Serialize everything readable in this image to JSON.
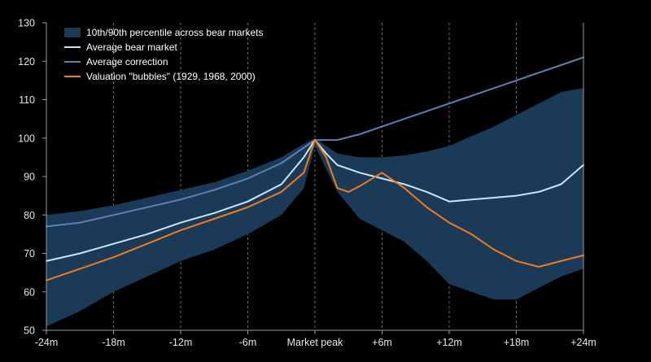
{
  "chart_data": {
    "type": "area",
    "title": "",
    "xlabel": "",
    "ylabel": "",
    "xlim": [
      -24,
      24
    ],
    "ylim": [
      50,
      130
    ],
    "grid": "vertical dashed",
    "legend_position": "top-left",
    "x_ticks": [
      {
        "value": -24,
        "label": "-24m"
      },
      {
        "value": -18,
        "label": "-18m"
      },
      {
        "value": -12,
        "label": "-12m"
      },
      {
        "value": -6,
        "label": "-6m"
      },
      {
        "value": 0,
        "label": "Market peak"
      },
      {
        "value": 6,
        "label": "+6m"
      },
      {
        "value": 12,
        "label": "+12m"
      },
      {
        "value": 18,
        "label": "+18m"
      },
      {
        "value": 24,
        "label": "+24m"
      }
    ],
    "y_ticks": [
      50,
      60,
      70,
      80,
      90,
      100,
      110,
      120,
      130
    ],
    "band": {
      "name": "10th/90th percentile across bear markets",
      "color": "#1b3a57",
      "x": [
        -24,
        -21,
        -18,
        -15,
        -12,
        -9,
        -6,
        -3,
        -1,
        0,
        2,
        4,
        6,
        8,
        10,
        12,
        14,
        16,
        18,
        20,
        22,
        24
      ],
      "upper": [
        80,
        81,
        82.5,
        84.5,
        86.5,
        88.5,
        91.5,
        95,
        98.5,
        100,
        96,
        95,
        95,
        95.5,
        96.5,
        98,
        100.5,
        103,
        106,
        109,
        112,
        113
      ],
      "lower": [
        51,
        55,
        60,
        64,
        68,
        71,
        75,
        80,
        87,
        98,
        86,
        79,
        76,
        73,
        68,
        62,
        60,
        58,
        58,
        61,
        64,
        66
      ]
    },
    "series": [
      {
        "name": "Average bear market",
        "color": "#c6e6fb",
        "x": [
          -24,
          -21,
          -18,
          -15,
          -12,
          -9,
          -6,
          -3,
          -1,
          0,
          1,
          2,
          4,
          6,
          8,
          10,
          12,
          14,
          16,
          18,
          20,
          22,
          24
        ],
        "values": [
          68,
          70,
          72.5,
          75,
          78,
          80.5,
          83.5,
          88,
          95,
          99.5,
          96,
          93,
          91,
          89.5,
          88,
          86,
          83.5,
          84,
          84.5,
          85,
          86,
          88,
          93
        ]
      },
      {
        "name": "Average correction",
        "color": "#5a81b3",
        "x": [
          -24,
          -21,
          -18,
          -15,
          -12,
          -9,
          -6,
          -3,
          -1,
          0,
          2,
          4,
          6,
          8,
          10,
          12,
          14,
          16,
          18,
          20,
          22,
          24
        ],
        "values": [
          77,
          78,
          80,
          82,
          84,
          86.5,
          89.5,
          93.5,
          97.5,
          99.5,
          99.5,
          101,
          103,
          105,
          107,
          109,
          111,
          113,
          115,
          117,
          119,
          121
        ]
      },
      {
        "name": "Valuation \"bubbles\" (1929, 1968, 2000)",
        "color": "#f07a1e",
        "x": [
          -24,
          -21,
          -18,
          -15,
          -12,
          -9,
          -6,
          -3,
          -1,
          0,
          1,
          2,
          3,
          4,
          6,
          8,
          10,
          12,
          14,
          16,
          18,
          20,
          22,
          24
        ],
        "values": [
          63,
          66,
          69,
          72.5,
          76,
          79,
          82,
          86,
          91,
          99.5,
          95,
          87,
          86,
          87.5,
          91,
          87,
          82,
          78,
          75,
          71,
          68,
          66.5,
          68,
          69.5
        ]
      }
    ]
  }
}
